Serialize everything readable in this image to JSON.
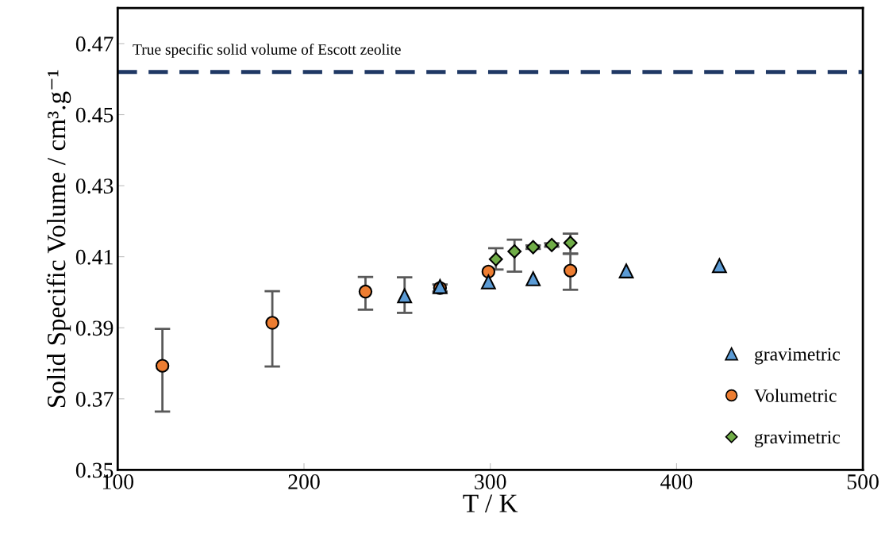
{
  "chart_data": {
    "type": "scatter",
    "xlabel": "T / K",
    "ylabel": "Solid Specific Volume / cm³.g⁻¹",
    "xlim": [
      100,
      500
    ],
    "xticks": [
      100,
      200,
      300,
      400,
      500
    ],
    "ylim": [
      0.35,
      0.48
    ],
    "yticks": [
      0.35,
      0.37,
      0.39,
      0.41,
      0.43,
      0.45,
      0.47
    ],
    "grid": false,
    "legend": "bottom right",
    "ref_lines": [
      {
        "axis": "y",
        "value": 0.462,
        "label": "True specific solid volume of Escott zeolite",
        "color": "#1f3864",
        "line_style": "dashed"
      }
    ],
    "series": [
      {
        "name": "gravimetric",
        "color": "#5b9bd5",
        "marker": "triangle",
        "x": [
          254,
          273,
          299,
          323,
          373,
          423
        ],
        "values": [
          0.399,
          0.4016,
          0.4029,
          0.4038,
          0.406,
          0.4075
        ],
        "errors": [
          [
            0.3942,
            0.4042
          ],
          null,
          null,
          null,
          null,
          null
        ]
      },
      {
        "name": "Volumetric",
        "color": "#ed7d31",
        "marker": "circle",
        "x": [
          124,
          183,
          233,
          273,
          299,
          343
        ],
        "values": [
          0.3793,
          0.3914,
          0.4002,
          0.4012,
          0.4058,
          0.4061
        ],
        "errors": [
          [
            0.3664,
            0.3897
          ],
          [
            0.3791,
            0.4003
          ],
          [
            0.3951,
            0.4043
          ],
          0.001,
          null,
          [
            0.4007,
            0.4109
          ]
        ]
      },
      {
        "name": "gravimetric",
        "color": "#70ad47",
        "marker": "diamond",
        "x": [
          303,
          313,
          323,
          333,
          343
        ],
        "values": [
          0.4093,
          0.4115,
          0.4127,
          0.4133,
          0.4139
        ],
        "errors": [
          [
            0.4064,
            0.4124
          ],
          [
            0.4058,
            0.4148
          ],
          0.0005,
          0.0005,
          [
            0.4108,
            0.4165
          ]
        ]
      }
    ]
  }
}
